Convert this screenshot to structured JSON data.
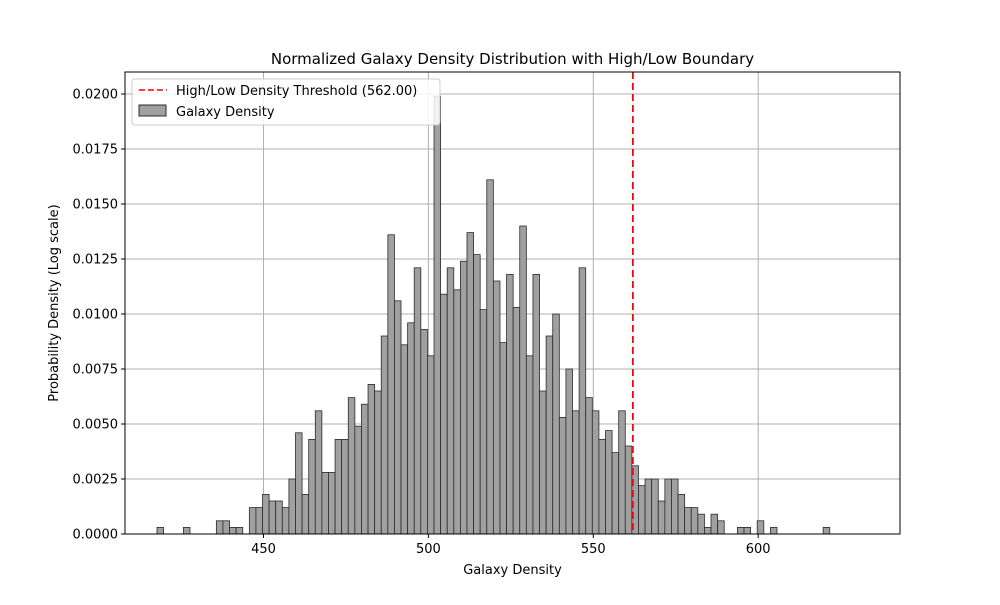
{
  "chart_data": {
    "type": "bar",
    "title": "Normalized Galaxy Density Distribution with High/Low Boundary",
    "xlabel": "Galaxy Density",
    "ylabel": "Probability Density (Log scale)",
    "xlim": [
      408,
      643
    ],
    "ylim": [
      0,
      0.021
    ],
    "x_ticks": [
      450,
      500,
      550,
      600
    ],
    "y_ticks": [
      0.0,
      0.0025,
      0.005,
      0.0075,
      0.01,
      0.0125,
      0.015,
      0.0175,
      0.02
    ],
    "y_tick_labels": [
      "0.0000",
      "0.0025",
      "0.0050",
      "0.0075",
      "0.0100",
      "0.0125",
      "0.0150",
      "0.0175",
      "0.0200"
    ],
    "grid": true,
    "legend_position": "top-left",
    "bin_start": 417.7,
    "bin_width": 2.0,
    "series": [
      {
        "name": "Galaxy Density",
        "color": "#a0a0a0",
        "edge_color": "#2b2b2b",
        "values": [
          0.0003,
          0,
          0,
          0,
          0.0003,
          0,
          0,
          0,
          0,
          0.0006,
          0.0006,
          0.0003,
          0.0003,
          0,
          0.0012,
          0.0012,
          0.0018,
          0.0015,
          0.0015,
          0.0012,
          0.0025,
          0.0046,
          0.0018,
          0.0043,
          0.0056,
          0.0028,
          0.0028,
          0.0043,
          0.0043,
          0.0062,
          0.0049,
          0.0059,
          0.0068,
          0.0065,
          0.009,
          0.0136,
          0.0106,
          0.0086,
          0.0096,
          0.0121,
          0.0093,
          0.0081,
          0.0199,
          0.0109,
          0.0121,
          0.0111,
          0.0124,
          0.0137,
          0.0127,
          0.0102,
          0.0161,
          0.0115,
          0.0087,
          0.0118,
          0.0103,
          0.014,
          0.0081,
          0.0118,
          0.0065,
          0.009,
          0.01,
          0.0053,
          0.0075,
          0.0056,
          0.0121,
          0.0062,
          0.0056,
          0.0043,
          0.0047,
          0.0037,
          0.0056,
          0.004,
          0.0031,
          0.0022,
          0.0025,
          0.0025,
          0.0015,
          0.0025,
          0.0025,
          0.0018,
          0.0012,
          0.0012,
          0.0009,
          0.0003,
          0.0009,
          0.0006,
          0,
          0,
          0.0003,
          0.0003,
          0,
          0.0006,
          0,
          0.0003,
          0,
          0,
          0,
          0,
          0,
          0,
          0,
          0.0003
        ]
      }
    ],
    "threshold": {
      "name": "High/Low Density Threshold (562.00)",
      "value": 562.0,
      "color": "#ff0000",
      "style": "dashed"
    }
  }
}
